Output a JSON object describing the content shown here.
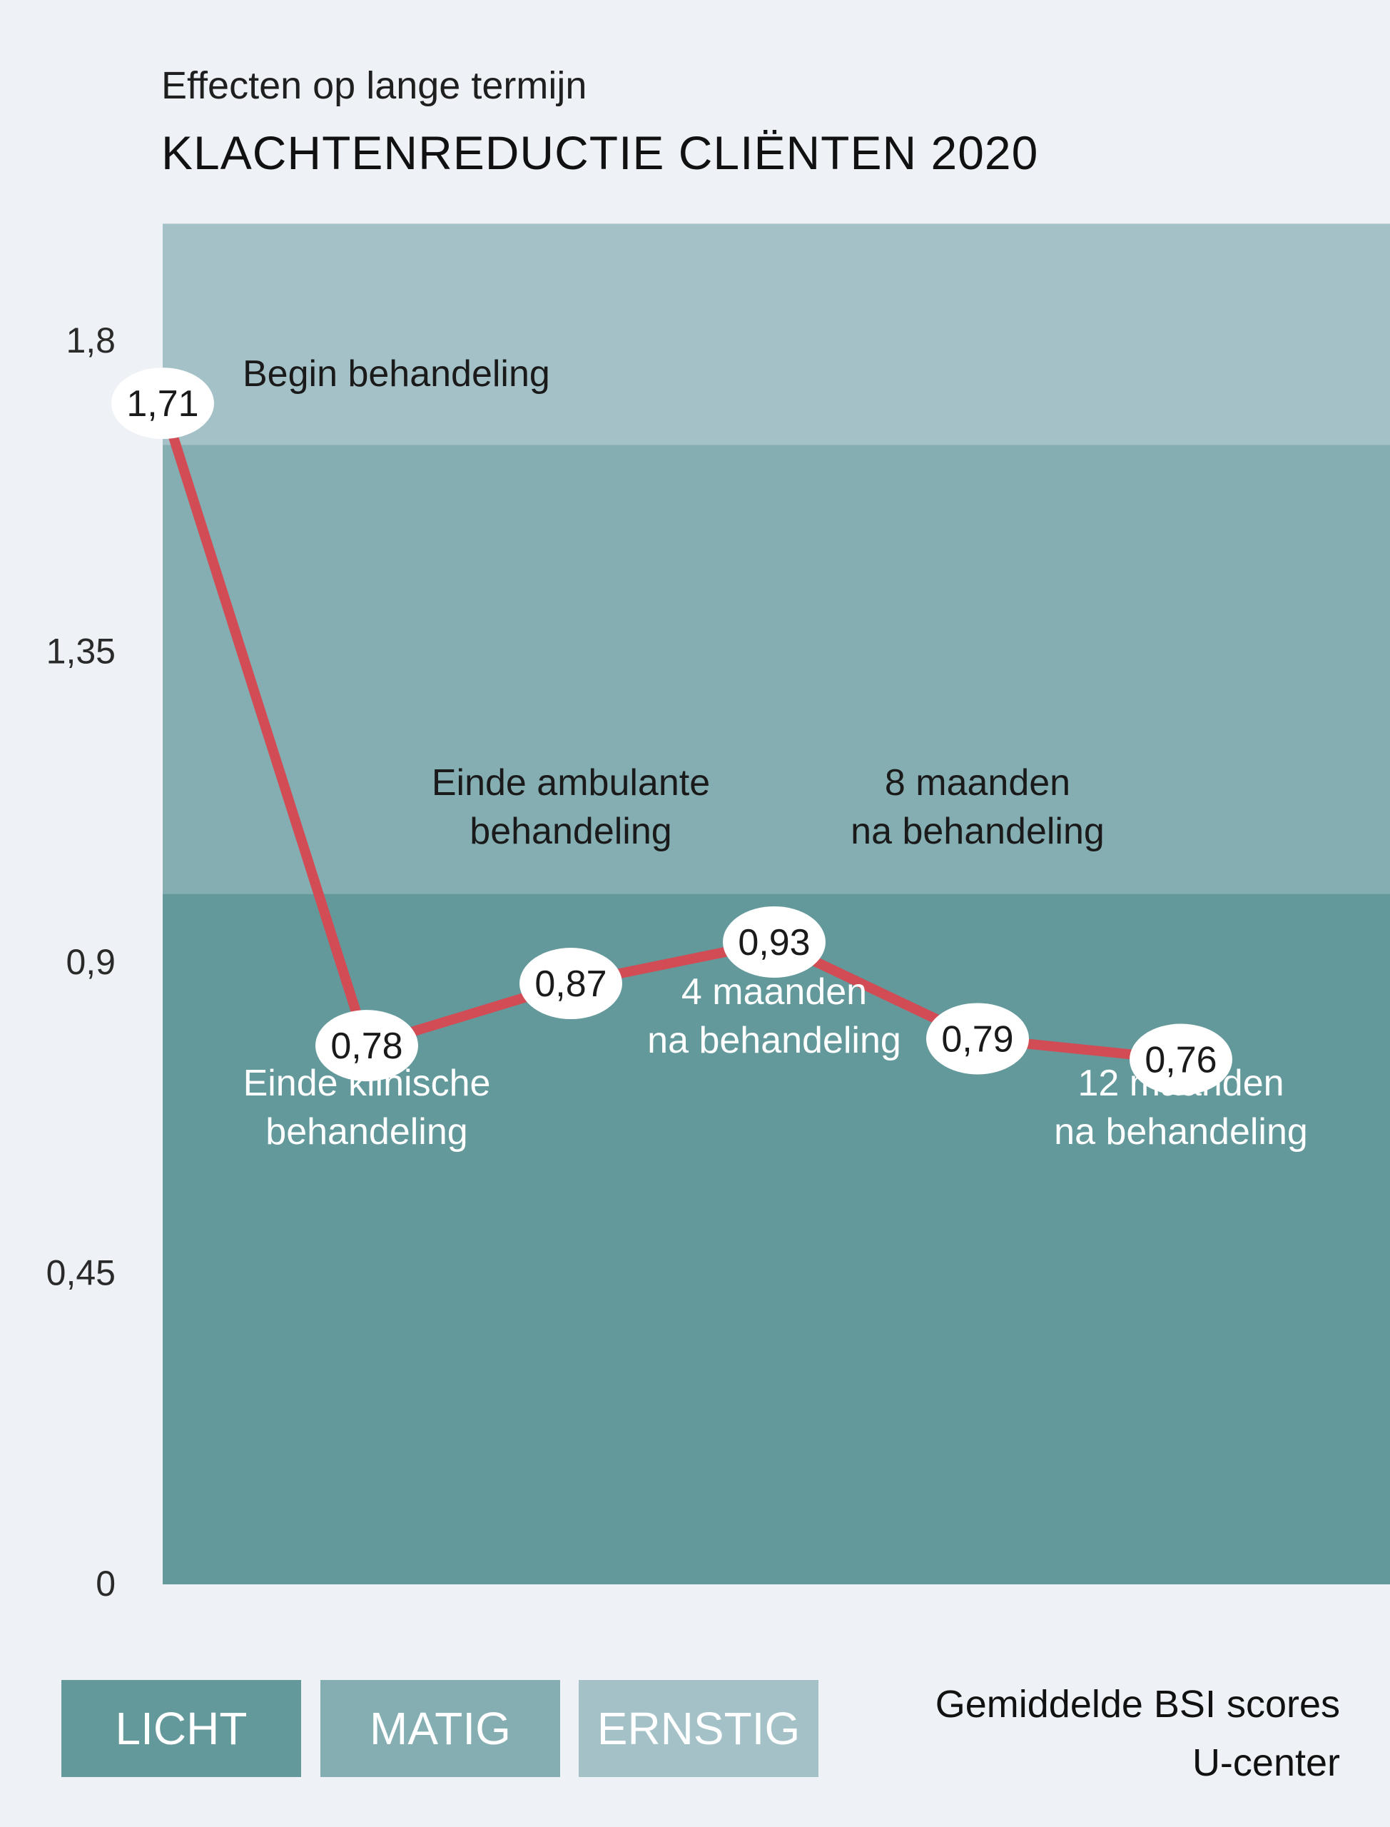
{
  "header": {
    "subtitle": "Effecten op lange termijn",
    "title": "KLACHTENREDUCTIE CLIËNTEN 2020"
  },
  "legend": {
    "items": [
      {
        "label": "LICHT",
        "color": "#63999b"
      },
      {
        "label": "MATIG",
        "color": "#84aeb2"
      },
      {
        "label": "ERNSTIG",
        "color": "#a3c1c6"
      }
    ]
  },
  "footnote": {
    "line1": "Gemiddelde BSI scores",
    "line2": "U-center"
  },
  "chart_data": {
    "type": "line",
    "title": "KLACHTENREDUCTIE CLIËNTEN 2020",
    "subtitle": "Effecten op lange termijn",
    "ylim": [
      0,
      1.97
    ],
    "yticks": [
      0,
      0.45,
      0.9,
      1.35,
      1.8
    ],
    "ytick_labels": [
      "0",
      "0,45",
      "0,9",
      "1,35",
      "1,8"
    ],
    "bands": [
      {
        "label": "LICHT",
        "from": 0,
        "to": 1.0,
        "color": "#63999b"
      },
      {
        "label": "MATIG",
        "from": 1.0,
        "to": 1.65,
        "color": "#84aeb2"
      },
      {
        "label": "ERNSTIG",
        "from": 1.65,
        "to": 1.97,
        "color": "#a3c1c6"
      }
    ],
    "line_color": "#d24c55",
    "categories": [
      "Begin behandeling",
      "Einde klinische behandeling",
      "Einde ambulante behandeling",
      "4 maanden na behandeling",
      "8 maanden na behandeling",
      "12 maanden na behandeling"
    ],
    "values": [
      1.71,
      0.78,
      0.87,
      0.93,
      0.79,
      0.76
    ],
    "value_labels": [
      "1,71",
      "0,78",
      "0,87",
      "0,93",
      "0,79",
      "0,76"
    ],
    "point_annotations": [
      {
        "lines": [
          "Begin behandeling"
        ],
        "color": "#1a1a1a"
      },
      {
        "lines": [
          "Einde klinische",
          "behandeling"
        ],
        "color": "#ffffff"
      },
      {
        "lines": [
          "Einde ambulante",
          "behandeling"
        ],
        "color": "#1a1a1a"
      },
      {
        "lines": [
          "4 maanden",
          "na behandeling"
        ],
        "color": "#ffffff"
      },
      {
        "lines": [
          "8 maanden",
          "na behandeling"
        ],
        "color": "#1a1a1a"
      },
      {
        "lines": [
          "12 maanden",
          "na behandeling"
        ],
        "color": "#ffffff"
      }
    ]
  }
}
